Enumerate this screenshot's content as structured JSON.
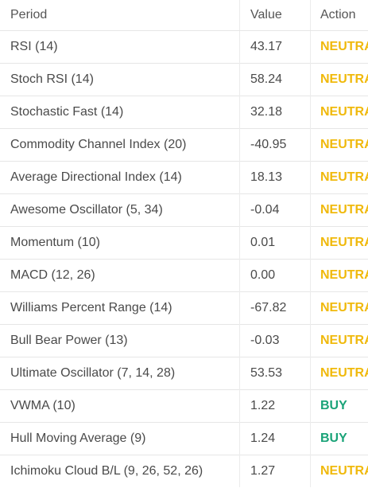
{
  "header": {
    "col_name": "Period",
    "col_value": "Value",
    "col_action": "Action"
  },
  "colors": {
    "neutral": "#f0b90b",
    "buy": "#1aa378"
  },
  "rows": [
    {
      "name": "RSI (14)",
      "value": "43.17",
      "action": "NEUTRAL",
      "type": "neutral"
    },
    {
      "name": "Stoch RSI (14)",
      "value": "58.24",
      "action": "NEUTRAL",
      "type": "neutral"
    },
    {
      "name": "Stochastic Fast (14)",
      "value": "32.18",
      "action": "NEUTRAL",
      "type": "neutral"
    },
    {
      "name": "Commodity Channel Index (20)",
      "value": "-40.95",
      "action": "NEUTRAL",
      "type": "neutral"
    },
    {
      "name": "Average Directional Index (14)",
      "value": "18.13",
      "action": "NEUTRAL",
      "type": "neutral"
    },
    {
      "name": "Awesome Oscillator (5, 34)",
      "value": "-0.04",
      "action": "NEUTRAL",
      "type": "neutral"
    },
    {
      "name": "Momentum (10)",
      "value": "0.01",
      "action": "NEUTRAL",
      "type": "neutral"
    },
    {
      "name": "MACD (12, 26)",
      "value": "0.00",
      "action": "NEUTRAL",
      "type": "neutral"
    },
    {
      "name": "Williams Percent Range (14)",
      "value": "-67.82",
      "action": "NEUTRAL",
      "type": "neutral"
    },
    {
      "name": "Bull Bear Power (13)",
      "value": "-0.03",
      "action": "NEUTRAL",
      "type": "neutral"
    },
    {
      "name": "Ultimate Oscillator (7, 14, 28)",
      "value": "53.53",
      "action": "NEUTRAL",
      "type": "neutral"
    },
    {
      "name": "VWMA (10)",
      "value": "1.22",
      "action": "BUY",
      "type": "buy"
    },
    {
      "name": "Hull Moving Average (9)",
      "value": "1.24",
      "action": "BUY",
      "type": "buy"
    },
    {
      "name": "Ichimoku Cloud B/L (9, 26, 52, 26)",
      "value": "1.27",
      "action": "NEUTRAL",
      "type": "neutral"
    }
  ]
}
